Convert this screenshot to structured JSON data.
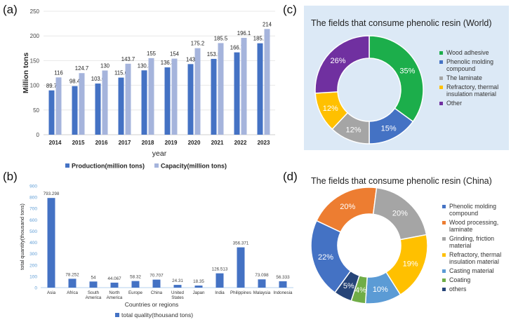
{
  "panels": {
    "a": "(a)",
    "b": "(b)",
    "c": "(c)",
    "d": "(d)"
  },
  "chart_data": [
    {
      "panel": "(a)",
      "type": "bar",
      "categories": [
        "2014",
        "2015",
        "2016",
        "2017",
        "2018",
        "2019",
        "2020",
        "2021",
        "2022",
        "2023"
      ],
      "series": [
        {
          "name": "Production(million tons)",
          "values": [
            89.7,
            98.4,
            103.6,
            115.6,
            130.3,
            136.3,
            143,
            153.5,
            166.7,
            185.1
          ],
          "labels": [
            "89.7",
            "98.4",
            "103.6",
            "115.6",
            "130.3",
            "136.3",
            "143",
            "153.5",
            "166.7",
            "185.1"
          ],
          "color": "#4472c4"
        },
        {
          "name": "Capacity(million tons)",
          "values": [
            116,
            124.7,
            130,
            143.7,
            155,
            154,
            175.2,
            185.5,
            196.1,
            214
          ],
          "labels": [
            "116",
            "124.7",
            "130",
            "143.7",
            "155",
            "154",
            "175.2",
            "185.5",
            "196.1",
            "214"
          ],
          "color": "#a5b4dc"
        }
      ],
      "xlabel": "year",
      "ylabel": "Million tons",
      "ylim": [
        0,
        250
      ],
      "yticks": [
        "0",
        "50",
        "100",
        "150",
        "200",
        "250"
      ],
      "grid": true,
      "legend_position": "bottom"
    },
    {
      "panel": "(b)",
      "type": "bar",
      "categories": [
        [
          "Asia"
        ],
        [
          "Africa"
        ],
        [
          "South",
          "America"
        ],
        [
          "North",
          "America"
        ],
        [
          "Europe"
        ],
        [
          "China"
        ],
        [
          "United",
          "States"
        ],
        [
          "Japan"
        ],
        [
          "India"
        ],
        [
          "Philippines"
        ],
        [
          "Malaysia"
        ],
        [
          "Indonesia"
        ]
      ],
      "series": [
        {
          "name": "total quality(thousand tons)",
          "values": [
            793.298,
            78.252,
            54,
            44.067,
            58.32,
            70.707,
            24.31,
            18.35,
            126.513,
            356.371,
            73.098,
            56.333
          ],
          "labels": [
            "793.298",
            "78.252",
            "54",
            "44.067",
            "58.32",
            "70.707",
            "24.31",
            "18.35",
            "126.513",
            "356.371",
            "73.098",
            "56.333"
          ],
          "color": "#4472c4"
        }
      ],
      "xlabel": "Countries or regions",
      "ylabel": "total quantity(thousand tons)",
      "ylim": [
        0,
        900
      ],
      "yticks": [
        "0",
        "100",
        "200",
        "300",
        "400",
        "500",
        "600",
        "700",
        "800",
        "900"
      ],
      "grid": false,
      "legend_position": "bottom"
    },
    {
      "panel": "(c)",
      "type": "pie",
      "title": "The fields that consume phenolic resin (World)",
      "slices": [
        {
          "label": "Wood adhesive",
          "value": 35,
          "text": "35%",
          "color": "#1cae4b"
        },
        {
          "label": "Phenolic molding\ncompound",
          "value": 15,
          "text": "15%",
          "color": "#4472c4"
        },
        {
          "label": "The laminate",
          "value": 12,
          "text": "12%",
          "color": "#a5a5a5"
        },
        {
          "label": "Refractory, thermal\ninsulation material",
          "value": 12,
          "text": "12%",
          "color": "#ffc000"
        },
        {
          "label": "Other",
          "value": 26,
          "text": "26%",
          "color": "#7030a0"
        }
      ],
      "legend_position": "right",
      "background": "#dce9f6"
    },
    {
      "panel": "(d)",
      "type": "pie",
      "title": "The fields that consume phenolic resin (China)",
      "slices": [
        {
          "label": "Phenolic molding\ncompound",
          "value": 22,
          "text": "22%",
          "color": "#4472c4"
        },
        {
          "label": "Wood processing,\nlaminate",
          "value": 20,
          "text": "20%",
          "color": "#ed7d31"
        },
        {
          "label": "Grinding, friction\nmaterial",
          "value": 20,
          "text": "20%",
          "color": "#a5a5a5"
        },
        {
          "label": "Refractory, thermal\ninsulation material",
          "value": 19,
          "text": "19%",
          "color": "#ffc000"
        },
        {
          "label": "Casting material",
          "value": 10,
          "text": "10%",
          "color": "#5b9bd5"
        },
        {
          "label": "Coating",
          "value": 4,
          "text": "4%",
          "color": "#70ad47"
        },
        {
          "label": "others",
          "value": 5,
          "text": "5%",
          "color": "#264478"
        }
      ],
      "legend_position": "right",
      "background": "#ffffff"
    }
  ]
}
